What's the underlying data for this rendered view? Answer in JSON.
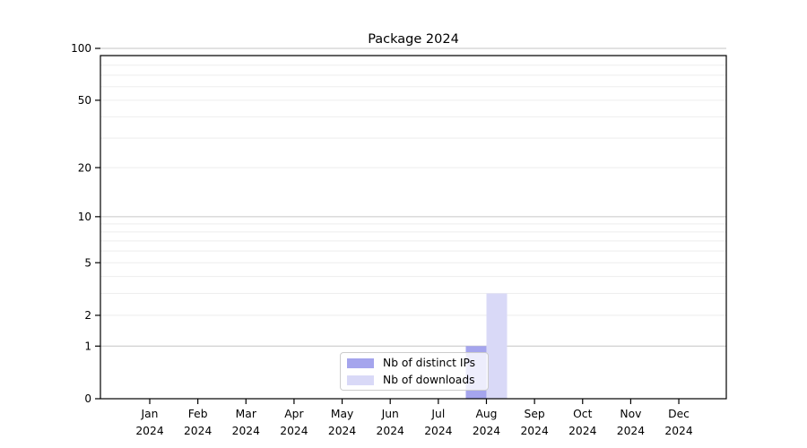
{
  "title": "Package 2024",
  "colors": {
    "distinct_ips": "#a5a5ed",
    "downloads": "#d9d9f7",
    "grid_major": "#c6c6c6",
    "grid_minor": "#eeeeee",
    "axis": "#000000",
    "legend_border": "#cccccc",
    "background": "#ffffff"
  },
  "legend": {
    "items": [
      {
        "label": "Nb of distinct IPs",
        "color_key": "distinct_ips"
      },
      {
        "label": "Nb of downloads",
        "color_key": "downloads"
      }
    ]
  },
  "chart_data": {
    "type": "bar",
    "title": "Package 2024",
    "categories": [
      "Jan 2024",
      "Feb 2024",
      "Mar 2024",
      "Apr 2024",
      "May 2024",
      "Jun 2024",
      "Jul 2024",
      "Aug 2024",
      "Sep 2024",
      "Oct 2024",
      "Nov 2024",
      "Dec 2024"
    ],
    "series": [
      {
        "name": "Nb of distinct IPs",
        "color_key": "distinct_ips",
        "values": [
          0,
          0,
          0,
          0,
          0,
          0,
          0,
          1,
          0,
          0,
          0,
          0
        ]
      },
      {
        "name": "Nb of downloads",
        "color_key": "downloads",
        "values": [
          0,
          0,
          0,
          0,
          0,
          0,
          0,
          3,
          0,
          0,
          0,
          0
        ]
      }
    ],
    "xlabel": "",
    "ylabel": "",
    "y_scale": "log10(1+v)",
    "ylim": [
      0,
      110
    ],
    "y_ticks": [
      0,
      1,
      2,
      5,
      10,
      20,
      50,
      100
    ],
    "y_minor_gridlines": [
      2,
      3,
      4,
      5,
      6,
      7,
      8,
      9,
      20,
      30,
      40,
      50,
      60,
      70,
      80,
      90
    ],
    "y_major_gridlines": [
      1,
      10,
      100
    ],
    "grid": "horizontal",
    "legend_position": "bottom-center-inside"
  }
}
